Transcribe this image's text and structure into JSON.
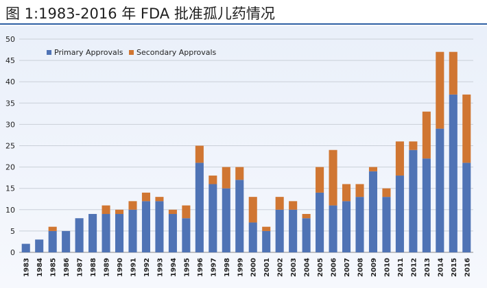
{
  "chart_data": {
    "type": "bar",
    "stacked": true,
    "title": "图 1:1983-2016 年 FDA 批准孤儿药情况",
    "xlabel": "",
    "ylabel": "",
    "ylim": [
      0,
      50
    ],
    "yticks": [
      0,
      5,
      10,
      15,
      20,
      25,
      30,
      35,
      40,
      45,
      50
    ],
    "grid": true,
    "legend_position": "top-left",
    "categories": [
      "1983",
      "1984",
      "1985",
      "1986",
      "1987",
      "1988",
      "1989",
      "1990",
      "1991",
      "1992",
      "1993",
      "1994",
      "1995",
      "1996",
      "1997",
      "1998",
      "1999",
      "2000",
      "2001",
      "2002",
      "2003",
      "2004",
      "2005",
      "2006",
      "2007",
      "2008",
      "2009",
      "2010",
      "2011",
      "2012",
      "2013",
      "2014",
      "2015",
      "2016"
    ],
    "series": [
      {
        "name": "Primary Approvals",
        "color": "#4f73b5",
        "values": [
          2,
          3,
          5,
          5,
          8,
          9,
          9,
          9,
          10,
          12,
          12,
          9,
          8,
          21,
          16,
          15,
          17,
          7,
          5,
          10,
          10,
          8,
          14,
          11,
          12,
          13,
          19,
          13,
          18,
          24,
          22,
          29,
          37,
          21
        ]
      },
      {
        "name": "Secondary Approvals",
        "color": "#d07632",
        "values": [
          0,
          0,
          1,
          0,
          0,
          0,
          2,
          1,
          2,
          2,
          1,
          1,
          3,
          4,
          2,
          5,
          3,
          6,
          1,
          3,
          2,
          1,
          6,
          13,
          4,
          3,
          1,
          2,
          8,
          2,
          11,
          18,
          10,
          16
        ]
      }
    ]
  }
}
